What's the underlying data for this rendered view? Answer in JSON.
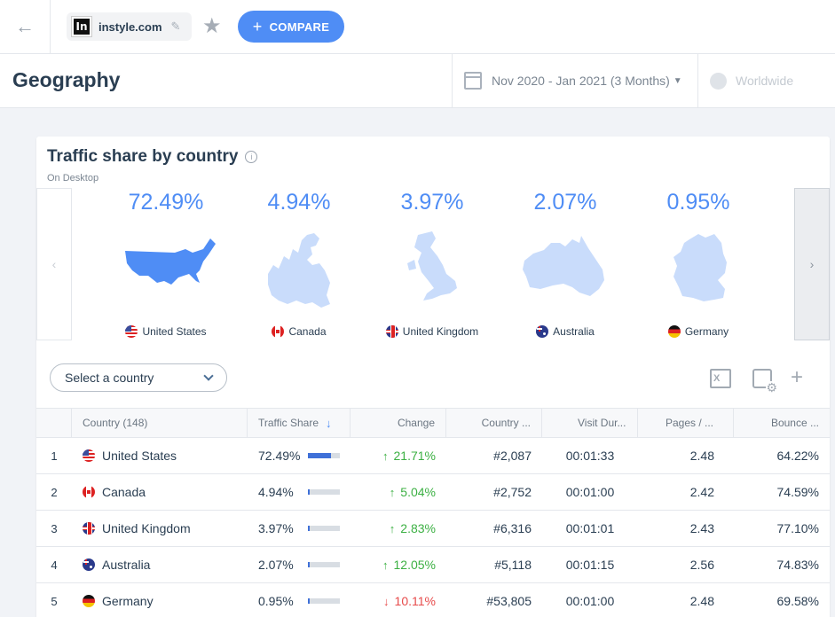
{
  "topbar": {
    "site": "instyle.com",
    "favicon_letter": "In",
    "compare_label": "COMPARE"
  },
  "header": {
    "title": "Geography",
    "date_range": "Nov 2020 - Jan 2021 (3 Months)",
    "region": "Worldwide"
  },
  "card": {
    "title": "Traffic share by country",
    "subtitle": "On Desktop",
    "tiles": [
      {
        "share": "72.49%",
        "country": "United States",
        "flag": "us",
        "map_color": "#4f8df5"
      },
      {
        "share": "4.94%",
        "country": "Canada",
        "flag": "ca",
        "map_color": "#c9dcfb"
      },
      {
        "share": "3.97%",
        "country": "United Kingdom",
        "flag": "uk",
        "map_color": "#c9dcfb"
      },
      {
        "share": "2.07%",
        "country": "Australia",
        "flag": "au",
        "map_color": "#c9dcfb"
      },
      {
        "share": "0.95%",
        "country": "Germany",
        "flag": "de",
        "map_color": "#c9dcfb"
      }
    ]
  },
  "controls": {
    "select_placeholder": "Select a country",
    "excel_label": "X"
  },
  "table": {
    "headers": {
      "country": "Country (148)",
      "traffic_share": "Traffic Share",
      "change": "Change",
      "country_rank": "Country ...",
      "visit_duration": "Visit Dur...",
      "pages": "Pages / ...",
      "bounce": "Bounce ..."
    },
    "rows": [
      {
        "rank": "1",
        "country": "United States",
        "flag": "us",
        "share": "72.49%",
        "share_fraction": 0.7249,
        "change": "21.71%",
        "direction": "up",
        "country_rank": "#2,087",
        "duration": "00:01:33",
        "pages": "2.48",
        "bounce": "64.22%"
      },
      {
        "rank": "2",
        "country": "Canada",
        "flag": "ca",
        "share": "4.94%",
        "share_fraction": 0.0494,
        "change": "5.04%",
        "direction": "up",
        "country_rank": "#2,752",
        "duration": "00:01:00",
        "pages": "2.42",
        "bounce": "74.59%"
      },
      {
        "rank": "3",
        "country": "United Kingdom",
        "flag": "uk",
        "share": "3.97%",
        "share_fraction": 0.0397,
        "change": "2.83%",
        "direction": "up",
        "country_rank": "#6,316",
        "duration": "00:01:01",
        "pages": "2.43",
        "bounce": "77.10%"
      },
      {
        "rank": "4",
        "country": "Australia",
        "flag": "au",
        "share": "2.07%",
        "share_fraction": 0.0207,
        "change": "12.05%",
        "direction": "up",
        "country_rank": "#5,118",
        "duration": "00:01:15",
        "pages": "2.56",
        "bounce": "74.83%"
      },
      {
        "rank": "5",
        "country": "Germany",
        "flag": "de",
        "share": "0.95%",
        "share_fraction": 0.0095,
        "change": "10.11%",
        "direction": "down",
        "country_rank": "#53,805",
        "duration": "00:01:00",
        "pages": "2.48",
        "bounce": "69.58%"
      }
    ]
  },
  "colors": {
    "accent": "#4f8df5",
    "bar_fill": "#3f70d8",
    "positive": "#3cb043",
    "negative": "#e74b4b"
  },
  "icons": [
    "back-arrow-icon",
    "edit-pencil-icon",
    "favorite-star-icon",
    "plus-icon",
    "calendar-icon",
    "caret-down-icon",
    "globe-icon",
    "info-icon",
    "chevron-left-icon",
    "chevron-right-icon",
    "chevron-down-icon",
    "excel-export-icon",
    "settings-icon",
    "add-icon",
    "sort-arrow-icon",
    "trend-up-icon",
    "trend-down-icon"
  ]
}
